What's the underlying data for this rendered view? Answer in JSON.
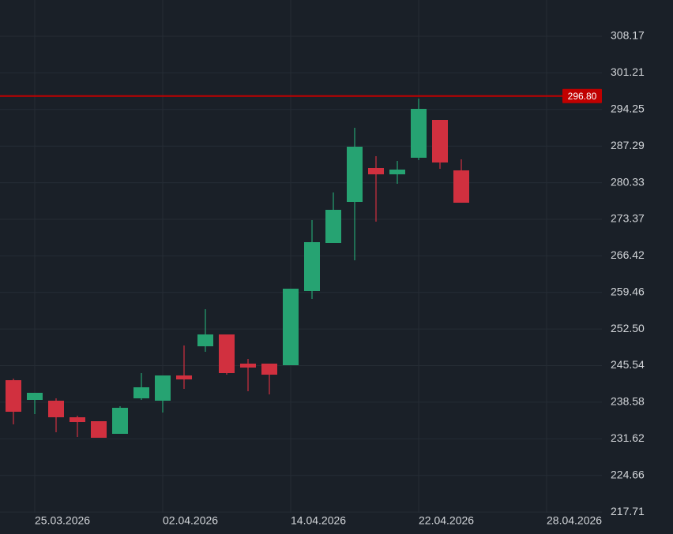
{
  "chart_data": {
    "type": "candlestick",
    "categories": [
      null,
      "25.03.2026",
      null,
      null,
      null,
      null,
      null,
      "02.04.2026",
      null,
      null,
      null,
      null,
      null,
      "14.04.2026",
      null,
      null,
      null,
      null,
      null,
      "22.04.2026",
      null,
      null,
      null,
      null,
      null,
      "28.04.2026"
    ],
    "open": [
      242.77,
      239.02,
      238.87,
      235.72,
      234.97,
      232.57,
      239.32,
      238.87,
      243.67,
      249.22,
      251.47,
      245.92,
      245.92,
      245.62,
      259.72,
      268.87,
      276.67,
      283.12,
      281.92,
      285.07,
      292.27,
      282.67,
      null,
      null,
      null,
      null
    ],
    "high": [
      243.07,
      240.37,
      239.32,
      236.02,
      234.97,
      237.82,
      244.12,
      243.67,
      249.37,
      256.27,
      251.47,
      246.82,
      245.92,
      260.17,
      273.22,
      278.47,
      290.77,
      285.37,
      284.47,
      296.32,
      292.27,
      284.77,
      null,
      null,
      null,
      null
    ],
    "low": [
      234.37,
      236.32,
      232.87,
      231.97,
      231.82,
      232.57,
      239.02,
      236.62,
      241.12,
      248.17,
      243.82,
      240.67,
      240.07,
      245.62,
      258.22,
      268.87,
      265.57,
      272.92,
      280.12,
      284.62,
      282.97,
      276.52,
      null,
      null,
      null,
      null
    ],
    "close": [
      236.77,
      240.37,
      235.72,
      234.82,
      231.82,
      237.52,
      241.42,
      243.67,
      242.92,
      251.47,
      244.12,
      245.17,
      243.82,
      260.17,
      269.02,
      275.17,
      287.17,
      281.92,
      282.82,
      294.37,
      284.17,
      276.52,
      null,
      null,
      null,
      null
    ],
    "up_color": "#26a372",
    "down_color": "#d1303f",
    "ylim": [
      213.52,
      315.07
    ],
    "yticks": [
      308.17,
      301.21,
      294.25,
      287.29,
      280.33,
      273.37,
      266.42,
      259.46,
      {
        "value": 252.5,
        "label": "252.50"
      },
      245.54,
      238.58,
      231.62,
      224.66,
      217.71
    ],
    "price_line": {
      "value": 296.8,
      "label": "296.80",
      "color": "#c00000"
    },
    "grid": true
  }
}
